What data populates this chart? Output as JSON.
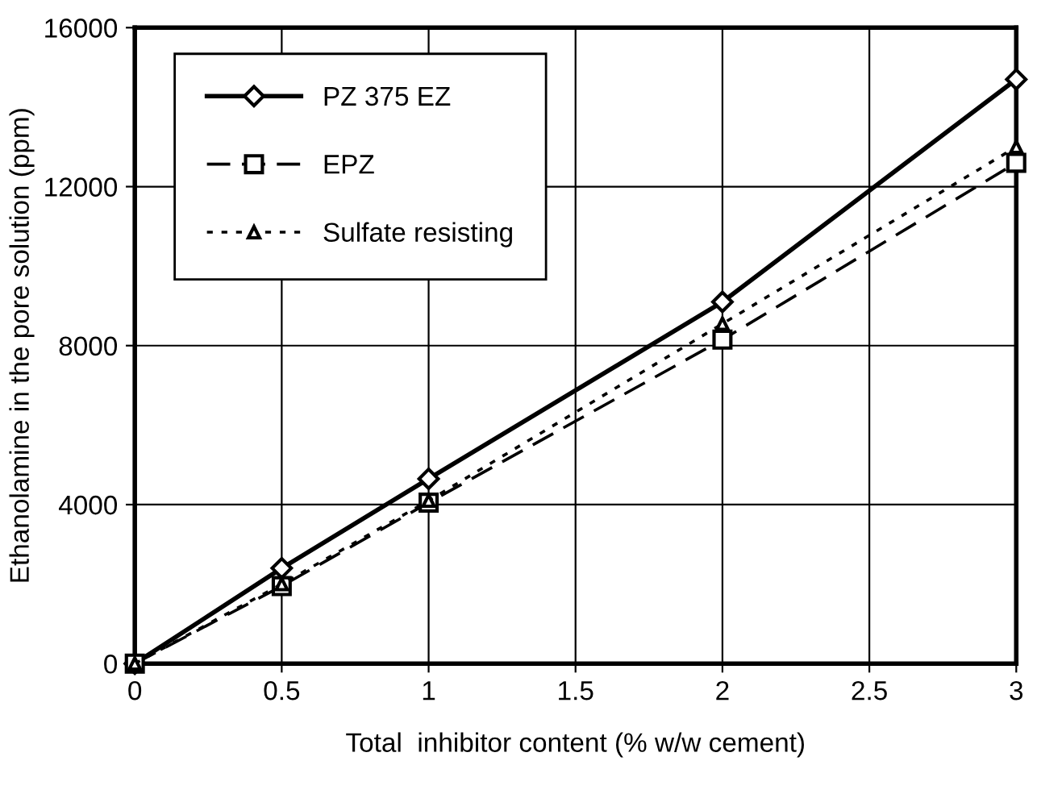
{
  "chart_data": {
    "type": "line",
    "xlabel": "Total  inhibitor content (% w/w cement)",
    "ylabel": "Ethanolamine in the pore solution (ppm)",
    "x": [
      0,
      0.5,
      1,
      2,
      3
    ],
    "series": [
      {
        "name": "PZ 375 EZ",
        "color": "#000000",
        "marker": "diamond",
        "line_style": "solid",
        "values": [
          0,
          2400,
          4650,
          9100,
          14700
        ]
      },
      {
        "name": "EPZ",
        "color": "#000000",
        "marker": "square",
        "line_style": "dashed",
        "values": [
          0,
          1950,
          4050,
          8150,
          12600
        ]
      },
      {
        "name": "Sulfate resisting",
        "color": "#000000",
        "marker": "triangle",
        "line_style": "dotted",
        "values": [
          0,
          2000,
          4100,
          8550,
          13000
        ]
      }
    ],
    "xlim": [
      0,
      3
    ],
    "ylim": [
      0,
      16000
    ],
    "xticks": [
      0,
      0.5,
      1,
      1.5,
      2,
      2.5,
      3
    ],
    "yticks": [
      0,
      4000,
      8000,
      12000,
      16000
    ],
    "grid": true,
    "legend": "top left"
  }
}
